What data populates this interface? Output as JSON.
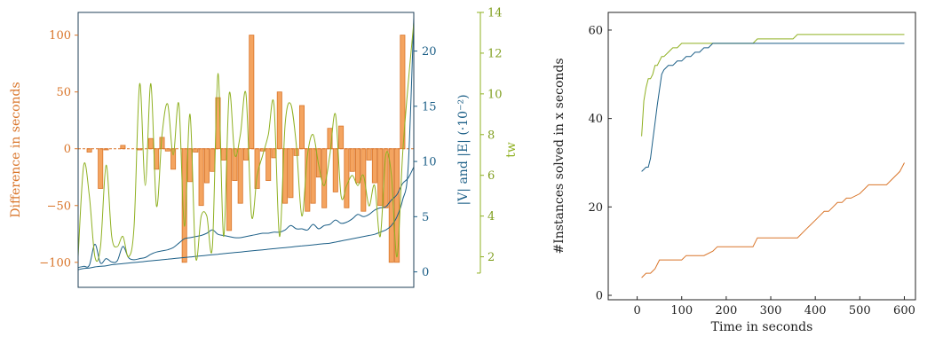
{
  "colors": {
    "orange": "#d9752a",
    "orange_fill": "#f4a460",
    "blue": "#1c5f87",
    "green": "#8fb021",
    "axis": "#1f3f57",
    "text": "#222222"
  },
  "chart_data": [
    {
      "type": "bar",
      "title": "",
      "ylabel_left": "Difference in seconds",
      "ylabel_right": "|V| and |E| (·10⁻²)",
      "ylabel_right2": "tw",
      "ylim_left": [
        -122,
        120
      ],
      "ylim_right": [
        -1.4,
        23.5
      ],
      "ylim_right2": [
        0.5,
        14
      ],
      "yticks_left": [
        -100,
        -50,
        0,
        50,
        100
      ],
      "yticks_right": [
        0,
        5,
        10,
        15,
        20
      ],
      "yticks_right2": [
        2,
        4,
        6,
        8,
        10,
        12,
        14
      ],
      "xticks": [],
      "bars": {
        "name": "Difference",
        "x": [
          2,
          4,
          5,
          8,
          11,
          13,
          14,
          15,
          16,
          17,
          19,
          20,
          21,
          22,
          23,
          24,
          25,
          26,
          27,
          28,
          29,
          30,
          31,
          32,
          33,
          34,
          35,
          36,
          37,
          38,
          39,
          40,
          41,
          42,
          43,
          44,
          45,
          46,
          47,
          48,
          49,
          50,
          51,
          52,
          53,
          54,
          55,
          56,
          57,
          58
        ],
        "values": [
          -3,
          -35,
          -1,
          3,
          -1,
          9,
          -18,
          10,
          -2,
          -18,
          -100,
          -29,
          -3,
          -50,
          -30,
          -20,
          45,
          -10,
          -72,
          -28,
          -48,
          -10,
          100,
          -35,
          -2,
          -28,
          -8,
          50,
          -48,
          -43,
          -6,
          38,
          -55,
          -48,
          -25,
          -52,
          18,
          -38,
          20,
          -52,
          -20,
          -30,
          -55,
          -10,
          -30,
          -50,
          -52,
          -100,
          -100,
          100
        ]
      },
      "series": [
        {
          "name": "|V|",
          "axis": "right",
          "x": [
            0,
            1,
            2,
            3,
            4,
            5,
            6,
            7,
            8,
            9,
            10,
            11,
            12,
            13,
            14,
            15,
            16,
            17,
            18,
            19,
            20,
            21,
            22,
            23,
            24,
            25,
            26,
            27,
            28,
            29,
            30,
            31,
            32,
            33,
            34,
            35,
            36,
            37,
            38,
            39,
            40,
            41,
            42,
            43,
            44,
            45,
            46,
            47,
            48,
            49,
            50,
            51,
            52,
            53,
            54,
            55,
            56,
            57,
            58,
            59,
            60
          ],
          "values": [
            0.2,
            0.3,
            0.35,
            0.45,
            0.5,
            0.55,
            0.65,
            0.7,
            0.75,
            0.8,
            0.85,
            0.9,
            0.95,
            1.0,
            1.05,
            1.1,
            1.15,
            1.2,
            1.25,
            1.3,
            1.35,
            1.4,
            1.45,
            1.5,
            1.55,
            1.6,
            1.65,
            1.7,
            1.75,
            1.8,
            1.85,
            1.9,
            1.95,
            2.0,
            2.05,
            2.1,
            2.15,
            2.2,
            2.25,
            2.3,
            2.35,
            2.4,
            2.45,
            2.5,
            2.55,
            2.6,
            2.7,
            2.8,
            2.9,
            3.0,
            3.1,
            3.2,
            3.3,
            3.4,
            3.6,
            3.8,
            4.2,
            5.0,
            6.5,
            9.5,
            23.0
          ]
        },
        {
          "name": "|E|",
          "axis": "right",
          "x": [
            0,
            1,
            2,
            3,
            4,
            5,
            6,
            7,
            8,
            9,
            10,
            11,
            12,
            13,
            14,
            15,
            16,
            17,
            18,
            19,
            20,
            21,
            22,
            23,
            24,
            25,
            26,
            27,
            28,
            29,
            30,
            31,
            32,
            33,
            34,
            35,
            36,
            37,
            38,
            39,
            40,
            41,
            42,
            43,
            44,
            45,
            46,
            47,
            48,
            49,
            50,
            51,
            52,
            53,
            54,
            55,
            56,
            57,
            58,
            59,
            60
          ],
          "values": [
            0.4,
            0.5,
            0.6,
            2.5,
            0.8,
            1.2,
            0.9,
            1.0,
            2.3,
            1.3,
            1.1,
            1.2,
            1.3,
            1.6,
            1.8,
            1.9,
            2.0,
            2.2,
            2.6,
            3.0,
            3.1,
            3.2,
            3.3,
            3.5,
            3.8,
            3.4,
            3.3,
            3.2,
            3.1,
            3.1,
            3.2,
            3.3,
            3.4,
            3.5,
            3.5,
            3.6,
            3.6,
            3.8,
            4.2,
            3.9,
            3.9,
            3.8,
            4.3,
            3.9,
            4.2,
            4.3,
            4.7,
            4.4,
            4.5,
            4.8,
            5.2,
            5.0,
            5.2,
            5.6,
            5.8,
            5.9,
            6.5,
            7.0,
            8.0,
            8.5,
            9.5
          ]
        },
        {
          "name": "tw",
          "axis": "right2",
          "x": [
            0,
            1,
            2,
            3,
            4,
            5,
            6,
            7,
            8,
            9,
            10,
            11,
            12,
            13,
            14,
            15,
            16,
            17,
            18,
            19,
            20,
            21,
            22,
            23,
            24,
            25,
            26,
            27,
            28,
            29,
            30,
            31,
            32,
            33,
            34,
            35,
            36,
            37,
            38,
            39,
            40,
            41,
            42,
            43,
            44,
            45,
            46,
            47,
            48,
            49,
            50,
            51,
            52,
            53,
            54,
            55,
            56,
            57,
            58,
            59,
            60
          ],
          "values": [
            2.0,
            6.5,
            5.0,
            2.0,
            2.5,
            6.5,
            3.0,
            2.5,
            3.0,
            2.0,
            3.5,
            10.5,
            5.5,
            10.5,
            4.5,
            8.0,
            9.5,
            7.0,
            9.5,
            3.5,
            9.0,
            2.0,
            4.0,
            4.0,
            2.5,
            11.0,
            3.0,
            10.0,
            7.0,
            8.0,
            10.0,
            4.0,
            6.0,
            7.0,
            8.0,
            9.5,
            3.0,
            8.5,
            9.5,
            7.5,
            4.0,
            7.0,
            8.0,
            6.5,
            5.5,
            7.0,
            9.0,
            5.0,
            5.5,
            6.0,
            5.5,
            6.0,
            4.5,
            5.5,
            3.0,
            7.0,
            6.0,
            2.0,
            7.0,
            10.5,
            13.5
          ]
        }
      ]
    },
    {
      "type": "line",
      "title": "",
      "xlabel": "Time in seconds",
      "ylabel": "#Instances solved in x seconds",
      "xlim": [
        -65,
        625
      ],
      "ylim": [
        -1,
        64
      ],
      "xticks": [
        0,
        100,
        200,
        300,
        400,
        500,
        600
      ],
      "yticks": [
        0,
        20,
        40,
        60
      ],
      "series": [
        {
          "name": "green",
          "x": [
            10,
            15,
            20,
            25,
            30,
            35,
            40,
            45,
            55,
            60,
            70,
            80,
            90,
            100,
            110,
            120,
            140,
            160,
            170,
            200,
            250,
            260,
            270,
            300,
            350,
            360,
            400,
            450,
            500,
            550,
            600
          ],
          "values": [
            36,
            44,
            47,
            49,
            49,
            50,
            52,
            52,
            54,
            54,
            55,
            56,
            56,
            57,
            57,
            57,
            57,
            57,
            57,
            57,
            57,
            57,
            58,
            58,
            58,
            59,
            59,
            59,
            59,
            59,
            59
          ]
        },
        {
          "name": "blue",
          "x": [
            10,
            15,
            20,
            25,
            30,
            35,
            40,
            45,
            55,
            60,
            70,
            80,
            90,
            100,
            110,
            120,
            130,
            140,
            150,
            160,
            170,
            200,
            250,
            300,
            350,
            400,
            450,
            500,
            550,
            600
          ],
          "values": [
            28,
            28.5,
            29,
            29,
            31,
            35,
            39,
            43,
            50,
            51,
            52,
            52,
            53,
            53,
            54,
            54,
            55,
            55,
            56,
            56,
            57,
            57,
            57,
            57,
            57,
            57,
            57,
            57,
            57,
            57
          ]
        },
        {
          "name": "orange",
          "x": [
            10,
            15,
            20,
            25,
            30,
            35,
            40,
            50,
            60,
            70,
            80,
            90,
            100,
            110,
            120,
            130,
            150,
            170,
            180,
            200,
            250,
            260,
            270,
            300,
            350,
            360,
            380,
            400,
            410,
            420,
            430,
            440,
            450,
            460,
            470,
            480,
            500,
            520,
            550,
            560,
            570,
            580,
            590,
            600
          ],
          "values": [
            4,
            4.5,
            5,
            5,
            5,
            5.5,
            6,
            8,
            8,
            8,
            8,
            8,
            8,
            9,
            9,
            9,
            9,
            10,
            11,
            11,
            11,
            11,
            13,
            13,
            13,
            13,
            15,
            17,
            18,
            19,
            19,
            20,
            21,
            21,
            22,
            22,
            23,
            25,
            25,
            25,
            26,
            27,
            28,
            30
          ]
        }
      ]
    }
  ]
}
